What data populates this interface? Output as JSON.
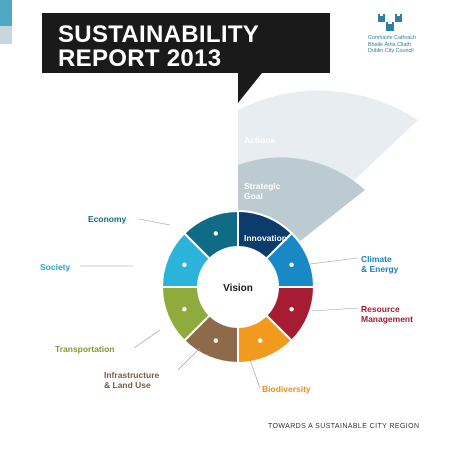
{
  "title": {
    "line1": "SUSTAINABILITY",
    "line2": "REPORT 2013"
  },
  "council": {
    "lines": [
      "Comhairle Cathrach",
      "Bhaile Átha Cliath",
      "Dublin City Council"
    ],
    "icon": "three-castles-icon"
  },
  "diagram": {
    "center": "Vision",
    "outer_bands": [
      "Strategic Goal",
      "Actions"
    ],
    "segments": [
      {
        "label": "Innovation",
        "color": "#0b3c6b",
        "label_color": "#ffffff"
      },
      {
        "label": "Climate & Energy",
        "color": "#1889c5",
        "label_color": "#1a7fb8"
      },
      {
        "label": "Resource Management",
        "color": "#a61d33",
        "label_color": "#a11a30"
      },
      {
        "label": "Biodiversity",
        "color": "#f29a1e",
        "label_color": "#e8901a"
      },
      {
        "label": "Infrastructure & Land Use",
        "color": "#8d6a4a",
        "label_color": "#7a5a3e"
      },
      {
        "label": "Transportation",
        "color": "#8eab3c",
        "label_color": "#7d9a30"
      },
      {
        "label": "Society",
        "color": "#2bb3d9",
        "label_color": "#27a6cf"
      },
      {
        "label": "Economy",
        "color": "#0f6b86",
        "label_color": "#0f6b86"
      }
    ],
    "fan_colors": {
      "actions": "#e7edf0",
      "strategic_goal": "#bccbd2"
    }
  },
  "footer": "TOWARDS A SUSTAINABLE CITY REGION"
}
